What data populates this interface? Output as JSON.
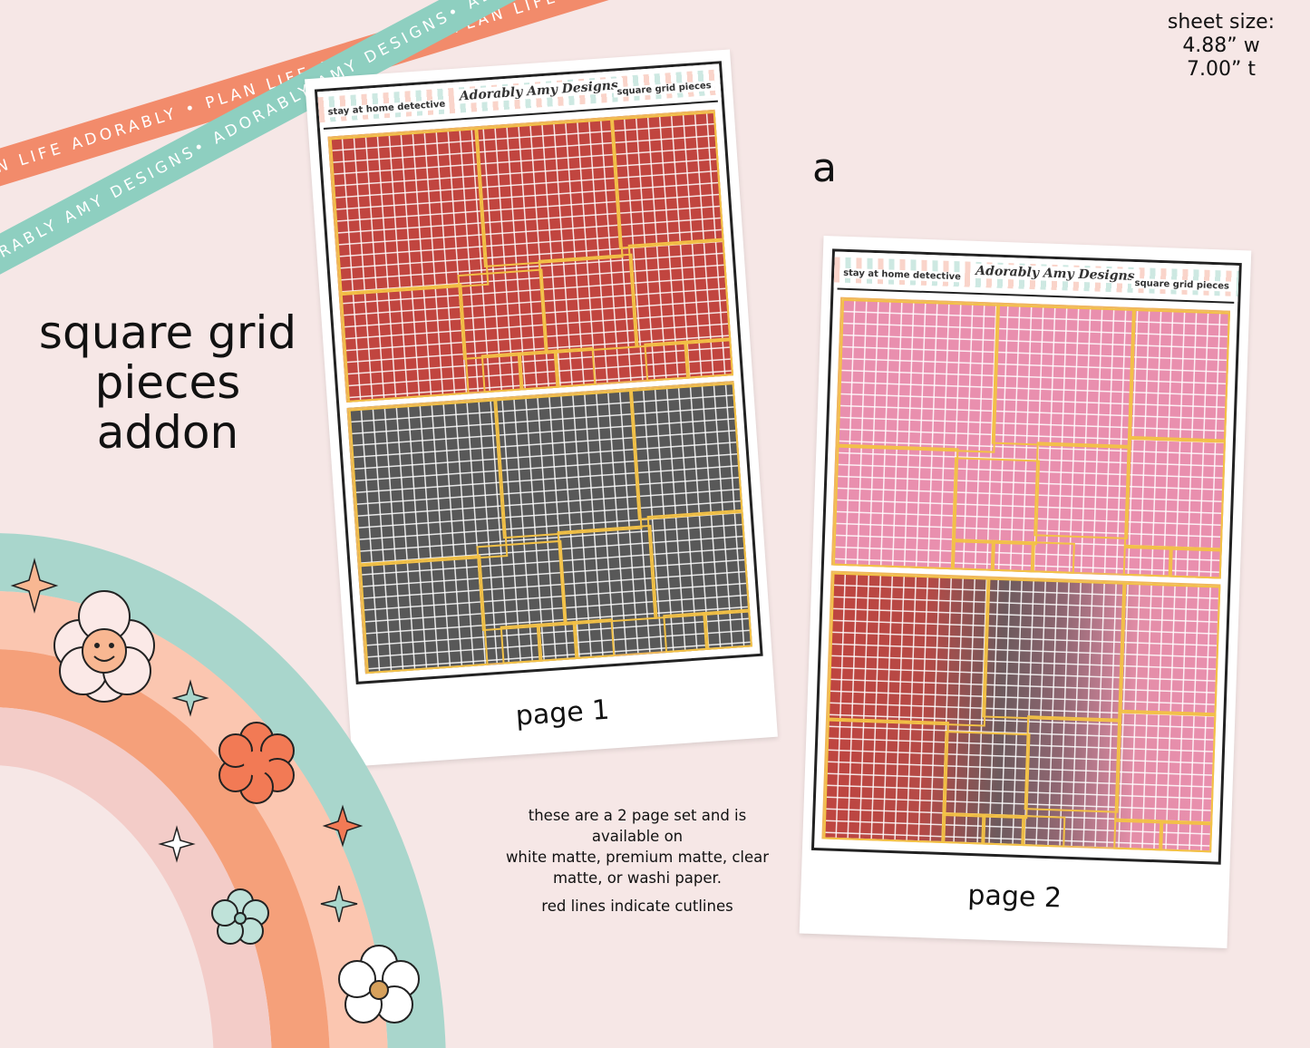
{
  "ribbons": {
    "coral_text": "PLAN LIFE ADORABLY • PLAN LIFE ADORABLY • PLAN LIFE ADORABLY •",
    "teal_text": "ADORABLY AMY DESIGNS• ADORABLY AMY DESIGNS• ADORABLY AMY DESIGNS•"
  },
  "title_lines": [
    "square grid",
    "pieces",
    "addon"
  ],
  "sheet_size": {
    "label": "sheet size:",
    "width": "4.88” w",
    "height": "7.00” t"
  },
  "variant_letter": "a",
  "sheets": [
    {
      "header_left": "stay at home detective",
      "header_logo": "Adorably Amy Designs",
      "header_right": "square grid pieces",
      "page_label": "page 1"
    },
    {
      "header_left": "stay at home detective",
      "header_logo": "Adorably Amy Designs",
      "header_right": "square grid pieces",
      "page_label": "page 2"
    }
  ],
  "caption": {
    "line1": "these are a 2 page set and is available on",
    "line2": "white matte, premium matte, clear matte, or washi paper.",
    "line3": "red lines indicate cutlines"
  },
  "colors": {
    "background": "#f6e7e6",
    "ribbon_coral": "#f28b6b",
    "ribbon_teal": "#8ecfc0",
    "grid_red": "#c1453f",
    "grid_gray": "#585858",
    "grid_pink": "#e98fae",
    "cutline": "#f3c146"
  }
}
